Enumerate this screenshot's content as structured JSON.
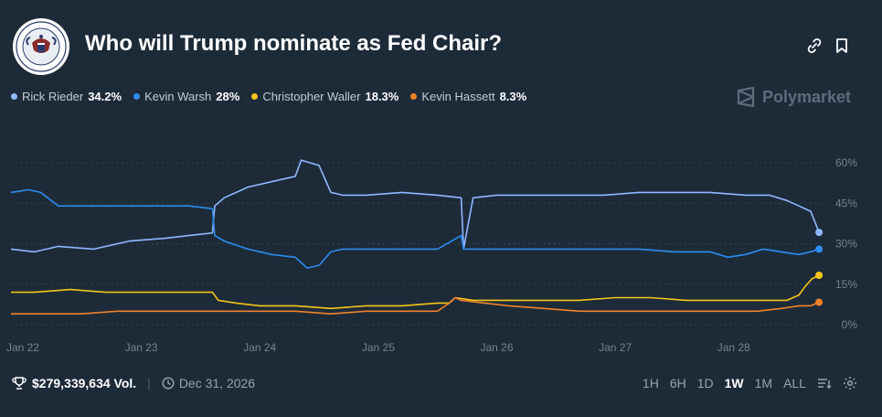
{
  "header": {
    "title": "Who will Trump nominate as Fed Chair?",
    "logo_name": "federal-reserve-seal"
  },
  "brand": {
    "name": "Polymarket"
  },
  "legend": [
    {
      "name": "Rick Rieder",
      "value": "34.2%",
      "color": "#8fb8ff"
    },
    {
      "name": "Kevin Warsh",
      "value": "28%",
      "color": "#2e8cf0"
    },
    {
      "name": "Christopher Waller",
      "value": "18.3%",
      "color": "#f5c518"
    },
    {
      "name": "Kevin Hassett",
      "value": "8.3%",
      "color": "#f0822a"
    }
  ],
  "footer": {
    "volume": "$279,339,634 Vol.",
    "end_date": "Dec 31, 2026",
    "ranges": [
      "1H",
      "6H",
      "1D",
      "1W",
      "1M",
      "ALL"
    ],
    "active_range": "1W"
  },
  "chart_data": {
    "type": "line",
    "title": "Who will Trump nominate as Fed Chair?",
    "x_ticks": [
      "Jan 22",
      "Jan 23",
      "Jan 24",
      "Jan 25",
      "Jan 26",
      "Jan 27",
      "Jan 28"
    ],
    "y_ticks": [
      "0%",
      "15%",
      "30%",
      "45%",
      "60%"
    ],
    "ylim": [
      0,
      65
    ],
    "xlim": [
      21.9,
      28.75
    ],
    "grid": true,
    "series": [
      {
        "name": "Rick Rieder",
        "color": "#8fb8ff",
        "x": [
          21.9,
          22.1,
          22.3,
          22.6,
          22.9,
          23.2,
          23.4,
          23.6,
          23.62,
          23.7,
          23.9,
          24.1,
          24.3,
          24.35,
          24.5,
          24.6,
          24.7,
          24.9,
          25.2,
          25.5,
          25.7,
          25.72,
          25.8,
          26.0,
          26.3,
          26.6,
          26.9,
          27.2,
          27.5,
          27.8,
          28.1,
          28.3,
          28.45,
          28.55,
          28.65,
          28.72
        ],
        "y": [
          28,
          27,
          29,
          28,
          31,
          32,
          33,
          34,
          44,
          47,
          51,
          53,
          55,
          61,
          59,
          49,
          48,
          48,
          49,
          48,
          47,
          28,
          47,
          48,
          48,
          48,
          48,
          49,
          49,
          49,
          48,
          48,
          46,
          44,
          42,
          34.2
        ]
      },
      {
        "name": "Kevin Warsh",
        "color": "#2e8cf0",
        "x": [
          21.9,
          22.05,
          22.15,
          22.3,
          22.6,
          22.9,
          23.2,
          23.4,
          23.6,
          23.62,
          23.7,
          23.9,
          24.1,
          24.3,
          24.4,
          24.5,
          24.6,
          24.7,
          24.9,
          25.2,
          25.5,
          25.7,
          25.72,
          25.8,
          26.0,
          26.3,
          26.6,
          26.9,
          27.2,
          27.5,
          27.8,
          27.95,
          28.1,
          28.25,
          28.4,
          28.55,
          28.65,
          28.72
        ],
        "y": [
          49,
          50,
          49,
          44,
          44,
          44,
          44,
          44,
          43,
          33,
          31,
          28,
          26,
          25,
          21,
          22,
          27,
          28,
          28,
          28,
          28,
          33,
          28,
          28,
          28,
          28,
          28,
          28,
          28,
          27,
          27,
          25,
          26,
          28,
          27,
          26,
          27,
          28
        ]
      },
      {
        "name": "Christopher Waller",
        "color": "#f5c518",
        "x": [
          21.9,
          22.1,
          22.4,
          22.7,
          23.0,
          23.3,
          23.6,
          23.65,
          23.8,
          24.0,
          24.3,
          24.6,
          24.9,
          25.2,
          25.5,
          25.6,
          25.65,
          25.8,
          26.1,
          26.4,
          26.7,
          27.0,
          27.3,
          27.6,
          27.9,
          28.2,
          28.45,
          28.55,
          28.6,
          28.66,
          28.72
        ],
        "y": [
          12,
          12,
          13,
          12,
          12,
          12,
          12,
          9,
          8,
          7,
          7,
          6,
          7,
          7,
          8,
          8,
          10,
          9,
          9,
          9,
          9,
          10,
          10,
          9,
          9,
          9,
          9,
          11,
          14,
          17,
          18.3
        ]
      },
      {
        "name": "Kevin Hassett",
        "color": "#f0822a",
        "x": [
          21.9,
          22.2,
          22.5,
          22.8,
          23.1,
          23.4,
          23.7,
          24.0,
          24.3,
          24.6,
          24.9,
          25.2,
          25.5,
          25.6,
          25.65,
          25.7,
          25.9,
          26.1,
          26.4,
          26.7,
          27.0,
          27.3,
          27.6,
          27.9,
          28.2,
          28.4,
          28.55,
          28.65,
          28.72
        ],
        "y": [
          4,
          4,
          4,
          5,
          5,
          5,
          5,
          5,
          5,
          4,
          5,
          5,
          5,
          8,
          10,
          9,
          8,
          7,
          6,
          5,
          5,
          5,
          5,
          5,
          5,
          6,
          7,
          7,
          8.3
        ]
      }
    ]
  }
}
